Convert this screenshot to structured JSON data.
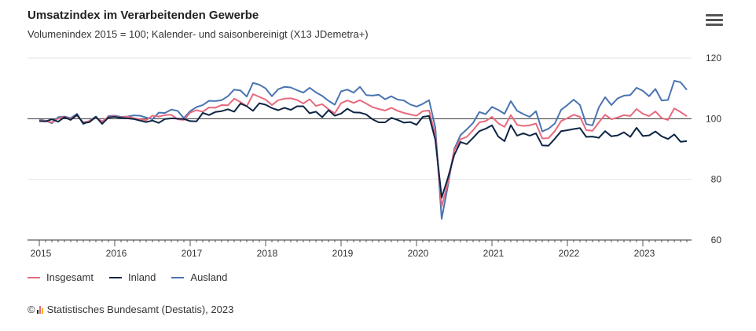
{
  "header": {
    "title": "Umsatzindex im Verarbeitenden Gewerbe",
    "subtitle": "Volumenindex 2015 = 100; Kalender- und saisonbereinigt (X13 JDemetra+)",
    "menu_icon": "hamburger-menu-icon"
  },
  "legend": [
    {
      "name": "Insgesamt",
      "color": "#e8697d"
    },
    {
      "name": "Inland",
      "color": "#0d2544"
    },
    {
      "name": "Ausland",
      "color": "#4a74b0"
    }
  ],
  "footer": {
    "copyright_symbol": "©",
    "source": "Statistisches Bundesamt (Destatis), 2023"
  },
  "chart_data": {
    "type": "line",
    "x_start": "2015-01",
    "frequency": "monthly",
    "x_ticks": [
      "2015",
      "2016",
      "2017",
      "2018",
      "2019",
      "2020",
      "2021",
      "2022",
      "2023"
    ],
    "y_ticks": [
      60,
      80,
      100,
      120
    ],
    "ylim": [
      60,
      120
    ],
    "reference_line": 100,
    "grid": true,
    "legend_position": "bottom-left",
    "series": [
      {
        "name": "Insgesamt",
        "color": "#e8697d",
        "values": [
          99.5,
          99.2,
          98.8,
          100.0,
          100.6,
          99.9,
          101.0,
          98.8,
          99.2,
          100.3,
          99.1,
          100.6,
          100.8,
          100.4,
          100.7,
          100.2,
          99.8,
          99.5,
          101.0,
          100.7,
          101.2,
          101.3,
          99.8,
          99.6,
          102.0,
          102.8,
          102.3,
          103.7,
          103.6,
          104.5,
          104.4,
          106.6,
          105.5,
          104.1,
          108.1,
          107.2,
          106.3,
          104.5,
          106.1,
          106.6,
          106.7,
          106.2,
          105.0,
          106.4,
          104.2,
          104.8,
          103.1,
          101.8,
          105.1,
          106.0,
          105.2,
          106.1,
          105.0,
          103.8,
          103.2,
          102.7,
          103.6,
          102.6,
          101.9,
          101.4,
          101.0,
          102.5,
          102.7,
          94.5,
          71.0,
          79.0,
          89.5,
          93.2,
          94.0,
          96.2,
          98.8,
          99.2,
          100.6,
          98.5,
          97.3,
          101.2,
          98.0,
          97.6,
          97.8,
          98.4,
          93.5,
          93.6,
          95.9,
          99.2,
          100.2,
          101.3,
          100.6,
          96.2,
          96.0,
          98.8,
          101.3,
          99.8,
          100.4,
          101.2,
          100.9,
          103.2,
          101.6,
          100.9,
          102.4,
          100.2,
          99.6,
          103.4,
          102.2,
          100.8
        ]
      },
      {
        "name": "Inland",
        "color": "#0d2544",
        "values": [
          99.2,
          99.1,
          99.8,
          99.0,
          100.5,
          99.6,
          101.3,
          98.5,
          98.9,
          100.6,
          98.3,
          100.4,
          100.6,
          100.3,
          100.1,
          99.9,
          99.4,
          98.9,
          99.4,
          98.6,
          99.9,
          100.1,
          100.0,
          99.9,
          99.2,
          99.1,
          101.9,
          101.2,
          102.2,
          102.5,
          103.1,
          102.3,
          105.0,
          104.1,
          102.6,
          105.1,
          104.6,
          103.5,
          102.8,
          103.6,
          102.9,
          104.1,
          104.1,
          101.8,
          102.3,
          100.5,
          102.8,
          101.0,
          101.7,
          103.3,
          102.1,
          102.0,
          101.4,
          99.8,
          98.8,
          98.8,
          100.3,
          99.6,
          98.7,
          98.9,
          98.0,
          100.6,
          100.9,
          93.0,
          74.0,
          80.5,
          88.0,
          92.3,
          91.6,
          93.7,
          95.9,
          96.7,
          97.8,
          94.1,
          92.6,
          97.9,
          94.4,
          95.2,
          94.4,
          95.2,
          91.2,
          91.1,
          93.4,
          95.9,
          96.2,
          96.6,
          96.9,
          94.0,
          94.1,
          93.7,
          95.9,
          94.2,
          94.5,
          95.5,
          94.0,
          97.0,
          94.3,
          94.5,
          95.8,
          94.2,
          93.3,
          94.8,
          92.4,
          92.6
        ]
      },
      {
        "name": "Ausland",
        "color": "#4a74b0",
        "values": [
          99.7,
          99.3,
          98.5,
          100.5,
          100.7,
          100.2,
          101.6,
          98.2,
          99.3,
          100.7,
          98.4,
          100.9,
          101.0,
          100.6,
          100.7,
          101.1,
          101.0,
          100.4,
          99.8,
          102.0,
          101.9,
          103.0,
          102.6,
          100.2,
          102.5,
          103.8,
          104.5,
          105.9,
          105.8,
          106.1,
          107.4,
          109.6,
          109.3,
          107.3,
          111.8,
          111.2,
          110.0,
          107.4,
          109.7,
          110.5,
          110.3,
          109.4,
          108.6,
          110.2,
          108.7,
          107.5,
          105.9,
          104.6,
          109.0,
          109.6,
          108.6,
          110.5,
          107.8,
          107.6,
          107.9,
          106.4,
          107.4,
          106.3,
          106.0,
          104.7,
          104.0,
          104.9,
          106.1,
          97.0,
          67.0,
          78.0,
          90.0,
          94.6,
          96.5,
          98.6,
          102.2,
          101.5,
          103.9,
          102.9,
          101.6,
          105.8,
          102.6,
          101.5,
          100.6,
          102.5,
          95.8,
          96.7,
          98.4,
          102.9,
          104.5,
          106.3,
          104.5,
          98.2,
          97.8,
          103.7,
          107.1,
          104.5,
          106.7,
          107.6,
          107.8,
          110.2,
          109.2,
          107.4,
          109.8,
          106.0,
          106.2,
          112.5,
          112.0,
          109.5
        ]
      }
    ]
  }
}
